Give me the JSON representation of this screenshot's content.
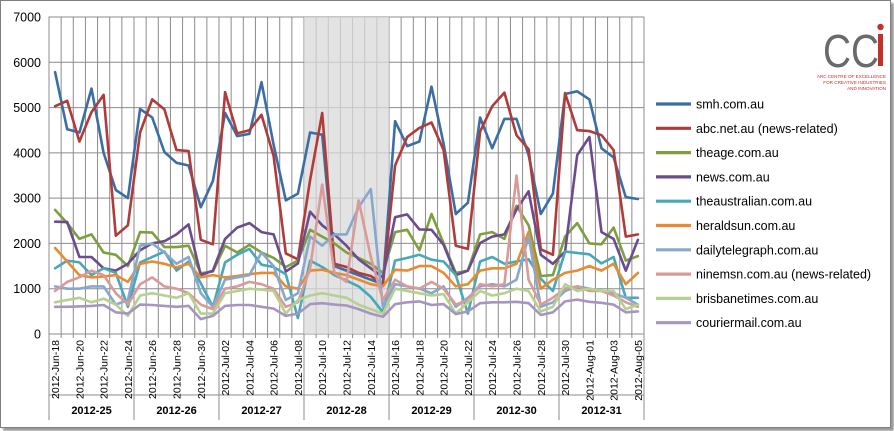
{
  "chart_data": {
    "type": "line",
    "xlabel": "",
    "ylabel": "",
    "ylim": [
      0,
      7000
    ],
    "yticks": [
      "0",
      "1000",
      "2000",
      "3000",
      "4000",
      "5000",
      "6000",
      "7000"
    ],
    "grid": true,
    "legend_position": "right",
    "highlight_band": {
      "from": "2012-Jul-09",
      "to": "2012-Jul-15"
    },
    "x": [
      "2012-Jun-18",
      "2012-Jun-19",
      "2012-Jun-20",
      "2012-Jun-21",
      "2012-Jun-22",
      "2012-Jun-23",
      "2012-Jun-24",
      "2012-Jun-25",
      "2012-Jun-26",
      "2012-Jun-27",
      "2012-Jun-28",
      "2012-Jun-29",
      "2012-Jun-30",
      "2012-Jul-01",
      "2012-Jul-02",
      "2012-Jul-03",
      "2012-Jul-04",
      "2012-Jul-05",
      "2012-Jul-06",
      "2012-Jul-07",
      "2012-Jul-08",
      "2012-Jul-09",
      "2012-Jul-10",
      "2012-Jul-11",
      "2012-Jul-12",
      "2012-Jul-13",
      "2012-Jul-14",
      "2012-Jul-15",
      "2012-Jul-16",
      "2012-Jul-17",
      "2012-Jul-18",
      "2012-Jul-19",
      "2012-Jul-20",
      "2012-Jul-21",
      "2012-Jul-22",
      "2012-Jul-23",
      "2012-Jul-24",
      "2012-Jul-25",
      "2012-Jul-26",
      "2012-Jul-27",
      "2012-Jul-28",
      "2012-Jul-29",
      "2012-Jul-30",
      "2012-Jul-31",
      "2012-Aug-01",
      "2012-Aug-02",
      "2012-Aug-03",
      "2012-Aug-04",
      "2012-Aug-05"
    ],
    "x_tick_labels": [
      "2012-Jun-18",
      "2012-Jun-20",
      "2012-Jun-22",
      "2012-Jun-24",
      "2012-Jun-26",
      "2012-Jun-28",
      "2012-Jun-30",
      "2012-Jul-02",
      "2012-Jul-04",
      "2012-Jul-06",
      "2012-Jul-08",
      "2012-Jul-10",
      "2012-Jul-12",
      "2012-Jul-14",
      "2012-Jul-16",
      "2012-Jul-18",
      "2012-Jul-20",
      "2012-Jul-22",
      "2012-Jul-24",
      "2012-Jul-26",
      "2012-Jul-28",
      "2012-Jul-30",
      "2012-Aug-01",
      "2012-Aug-03",
      "2012-Aug-05"
    ],
    "weeks": [
      "2012-25",
      "2012-26",
      "2012-27",
      "2012-28",
      "2012-29",
      "2012-30",
      "2012-31"
    ],
    "series": [
      {
        "name": "smh.com.au",
        "color": "#3b6ea5",
        "values": [
          5780,
          4520,
          4450,
          5420,
          4000,
          3180,
          3000,
          4970,
          4780,
          4020,
          3780,
          3720,
          2800,
          3380,
          4880,
          4370,
          4420,
          5560,
          4180,
          2950,
          3100,
          4450,
          4400,
          1500,
          1400,
          1300,
          1200,
          1100,
          4700,
          4150,
          4250,
          5460,
          4200,
          2650,
          2900,
          4780,
          4100,
          4750,
          4750,
          3950,
          2650,
          3100,
          5300,
          5360,
          5180,
          4100,
          3900,
          3020,
          2980
        ]
      },
      {
        "name": "abc.net.au (news-related)",
        "color": "#b03c3a",
        "values": [
          5030,
          5150,
          4250,
          4900,
          5280,
          2170,
          2400,
          4450,
          5180,
          4960,
          4060,
          4040,
          2080,
          1980,
          5340,
          4430,
          4500,
          4840,
          3930,
          1780,
          1650,
          3400,
          4880,
          1550,
          1480,
          1350,
          1280,
          1100,
          3720,
          4350,
          4550,
          4670,
          4060,
          1950,
          1880,
          4470,
          5030,
          5330,
          4390,
          4080,
          1870,
          1750,
          5320,
          4500,
          4480,
          4390,
          4060,
          2150,
          2200
        ]
      },
      {
        "name": "theage.com.au",
        "color": "#7f9f3f",
        "values": [
          2740,
          2450,
          2100,
          2200,
          1800,
          1750,
          1500,
          2250,
          2240,
          1920,
          1920,
          1950,
          1340,
          1380,
          1950,
          1800,
          1970,
          1800,
          1680,
          1480,
          1620,
          2300,
          2150,
          2000,
          1800,
          1680,
          1550,
          1350,
          2250,
          2300,
          1850,
          2650,
          2000,
          1350,
          1400,
          2200,
          2250,
          2100,
          2830,
          2400,
          1280,
          1300,
          2150,
          2450,
          2000,
          1980,
          2350,
          1620,
          1720
        ]
      },
      {
        "name": "news.com.au",
        "color": "#6b4c8f",
        "values": [
          2480,
          2470,
          1700,
          1700,
          1450,
          1400,
          1550,
          1850,
          2000,
          2050,
          2200,
          2420,
          1300,
          1400,
          2100,
          2350,
          2450,
          2250,
          2200,
          1380,
          1560,
          2700,
          2400,
          2200,
          1950,
          1650,
          1450,
          1250,
          2580,
          2640,
          2310,
          2300,
          1970,
          1300,
          1400,
          2010,
          2150,
          2200,
          2750,
          3150,
          1750,
          1550,
          1820,
          3950,
          4350,
          2250,
          2100,
          1400,
          2080
        ]
      },
      {
        "name": "theaustralian.com.au",
        "color": "#46a8b8",
        "values": [
          1450,
          1620,
          1580,
          1300,
          1450,
          1350,
          600,
          1580,
          1700,
          1820,
          1400,
          1600,
          1120,
          600,
          1580,
          1750,
          1880,
          1530,
          1480,
          1320,
          350,
          1620,
          1480,
          1300,
          1180,
          1050,
          820,
          480,
          1620,
          1680,
          1750,
          1640,
          1600,
          1300,
          450,
          1600,
          1700,
          1550,
          1600,
          1650,
          1220,
          950,
          1820,
          1790,
          1760,
          1560,
          1700,
          800,
          800
        ]
      },
      {
        "name": "heraldsun.com.au",
        "color": "#e88b33",
        "values": [
          1900,
          1600,
          1300,
          1250,
          1270,
          1300,
          1150,
          1550,
          1600,
          1550,
          1470,
          1550,
          1250,
          1300,
          1250,
          1280,
          1320,
          1350,
          1350,
          1050,
          1000,
          1400,
          1420,
          1350,
          1300,
          1200,
          1100,
          1050,
          1420,
          1400,
          1500,
          1500,
          1350,
          1050,
          1100,
          1400,
          1450,
          1450,
          1550,
          2250,
          1000,
          1200,
          1350,
          1400,
          1500,
          1400,
          1550,
          1100,
          1350
        ]
      },
      {
        "name": "dailytelegraph.com.au",
        "color": "#87a8cc",
        "values": [
          1050,
          1000,
          1000,
          1050,
          1050,
          650,
          750,
          1950,
          2000,
          1800,
          1550,
          1700,
          900,
          600,
          1200,
          1250,
          1300,
          1800,
          1500,
          750,
          900,
          2150,
          1950,
          2200,
          2200,
          2800,
          3200,
          600,
          1100,
          1050,
          1000,
          900,
          1050,
          600,
          800,
          1050,
          1100,
          1050,
          1200,
          2150,
          600,
          700,
          950,
          1050,
          1000,
          950,
          900,
          800,
          650
        ]
      },
      {
        "name": "ninemsn.com.au (news-related)",
        "color": "#d99a98",
        "values": [
          950,
          1150,
          1250,
          1400,
          1300,
          900,
          650,
          1100,
          1250,
          1050,
          1000,
          900,
          650,
          550,
          1000,
          1050,
          1150,
          1100,
          1000,
          600,
          700,
          1450,
          3300,
          1350,
          1150,
          2950,
          1700,
          750,
          1200,
          1050,
          1000,
          1150,
          1000,
          650,
          750,
          1100,
          1050,
          1100,
          3500,
          1200,
          650,
          800,
          1000,
          1050,
          950,
          950,
          850,
          700,
          600
        ]
      },
      {
        "name": "brisbanetimes.com.au",
        "color": "#b5d18f",
        "values": [
          700,
          750,
          800,
          700,
          780,
          650,
          400,
          850,
          900,
          850,
          800,
          900,
          450,
          450,
          900,
          950,
          1000,
          980,
          950,
          450,
          750,
          850,
          900,
          850,
          800,
          650,
          550,
          450,
          1000,
          950,
          900,
          850,
          880,
          450,
          700,
          950,
          850,
          900,
          1000,
          950,
          500,
          600,
          1100,
          950,
          1000,
          950,
          950,
          550,
          650
        ]
      },
      {
        "name": "couriermail.com.au",
        "color": "#a795bf",
        "values": [
          600,
          600,
          610,
          620,
          640,
          480,
          450,
          650,
          640,
          620,
          600,
          620,
          330,
          400,
          620,
          640,
          640,
          600,
          560,
          400,
          450,
          660,
          680,
          650,
          630,
          550,
          450,
          380,
          660,
          700,
          720,
          640,
          660,
          440,
          500,
          680,
          700,
          700,
          710,
          680,
          420,
          480,
          720,
          760,
          710,
          690,
          650,
          480,
          500
        ]
      }
    ]
  },
  "logo": {
    "mark": "CCi",
    "caption_lines": [
      "ARC CENTRE OF EXCELLENCE",
      "FOR CREATIVE INDUSTRIES",
      "AND INNOVATION"
    ]
  }
}
